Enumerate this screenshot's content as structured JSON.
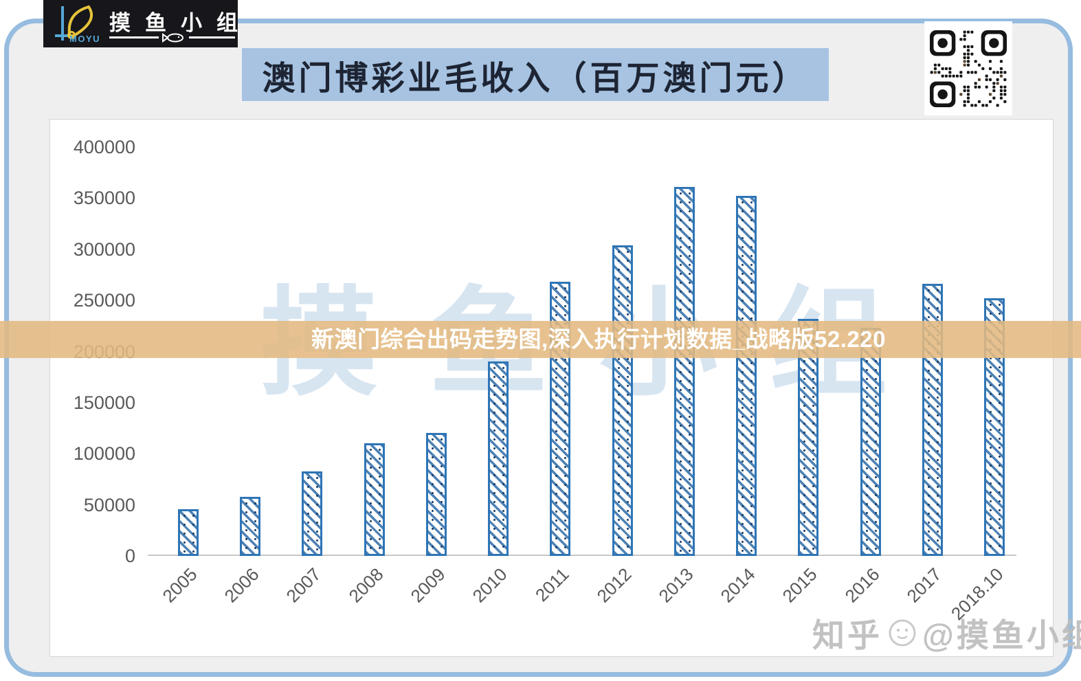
{
  "logo": {
    "brand_en": "MOYU",
    "brand_cn": "摸鱼小组"
  },
  "header": {
    "title": "澳门博彩业毛收入（百万澳门元）"
  },
  "overlay_banner": {
    "text": "新澳门综合出码走势图,深入执行计划数据_战略版52.220"
  },
  "watermarks": {
    "background_text": "摸鱼小组",
    "zhihu_prefix": "知乎",
    "zhihu_suffix": "@摸鱼小组"
  },
  "colors": {
    "bar_border": "#2e75b6",
    "bar_hatch": "rgba(62,118,173,0.92)",
    "bar_dot": "#1c3f66",
    "title_bg": "#a7c3e1",
    "title_text": "#1d2433",
    "banner_bg": "rgba(228,186,129,0.88)",
    "banner_text": "#ffffff",
    "frame_border": "#96bcdf",
    "frame_bg": "#efeff0",
    "card_border": "#d4d4d4",
    "axis_text": "#595959",
    "axis_line": "#c8c8c8",
    "logo_bg": "#17171b",
    "logo_yellow": "#e6c33a",
    "logo_blue": "#56a8d8",
    "bg_watermark": "rgba(141,180,216,0.35)",
    "zhihu_watermark": "#bdbdbd"
  },
  "chart_data": {
    "type": "bar",
    "title": "澳门博彩业毛收入（百万澳门元）",
    "categories": [
      "2005",
      "2006",
      "2007",
      "2008",
      "2009",
      "2010",
      "2011",
      "2012",
      "2013",
      "2014",
      "2015",
      "2016",
      "2017",
      "2018.10"
    ],
    "values": [
      46000,
      57500,
      83000,
      110000,
      120000,
      190000,
      268000,
      304000,
      361000,
      352000,
      232000,
      223000,
      266000,
      252000
    ],
    "unit": "百万澳门元",
    "xlabel": "",
    "ylabel": "",
    "ylim": [
      0,
      400000
    ],
    "yticks": [
      400000,
      350000,
      300000,
      250000,
      200000,
      150000,
      100000,
      50000,
      0
    ],
    "grid": false,
    "legend_position": "none",
    "bar_fill": "diagonal-hatch-pattern"
  }
}
